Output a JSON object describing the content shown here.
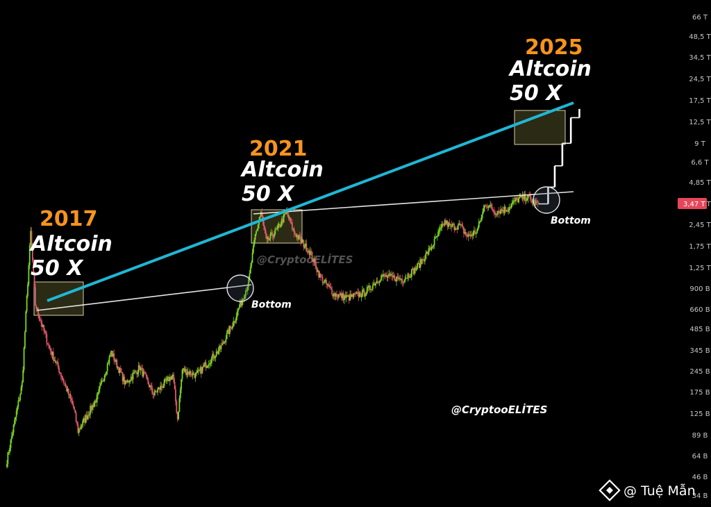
{
  "chart_data": {
    "type": "candlestick",
    "y_axis": {
      "scale": "log",
      "tick_labels": [
        "66 T",
        "48,5 T",
        "34,5 T",
        "24,5 T",
        "17,5 T",
        "12,5 T",
        "9 T",
        "6,6 T",
        "4,85 T",
        "3,47 T",
        "2,45 T",
        "1,75 T",
        "1,25 T",
        "900 B",
        "660 B",
        "485 B",
        "345 B",
        "245 B",
        "175 B",
        "125 B",
        "89 B",
        "64 B",
        "46 B",
        "34 B"
      ],
      "current_price_label": "3,47 T"
    },
    "cycles": [
      {
        "year": "2017",
        "line1": "Altcoin",
        "line2": "50 X"
      },
      {
        "year": "2021",
        "line1": "Altcoin",
        "line2": "50 X"
      },
      {
        "year": "2025",
        "line1": "Altcoin",
        "line2": "50 X"
      }
    ],
    "bottom_labels": [
      "Bottom",
      "Bottom"
    ],
    "watermarks": [
      "@CryptooELİTES",
      "@CryptooELİTES"
    ],
    "credit": "@ Tuệ Mẫn",
    "colors": {
      "up": "#7ad91f",
      "down": "#e0596a",
      "upper_trendline": "#1fb7d4",
      "lower_trendline": "#e6e6e6",
      "year": "#f7941d",
      "highlight_box": "#2b2a14"
    },
    "series_anchor_points": [
      [
        0,
        60
      ],
      [
        16,
        200
      ],
      [
        20,
        600
      ],
      [
        25,
        2200
      ],
      [
        30,
        700
      ],
      [
        45,
        350
      ],
      [
        55,
        250
      ],
      [
        70,
        140
      ],
      [
        75,
        95
      ],
      [
        95,
        160
      ],
      [
        110,
        330
      ],
      [
        125,
        200
      ],
      [
        140,
        260
      ],
      [
        155,
        170
      ],
      [
        175,
        230
      ],
      [
        180,
        115
      ],
      [
        185,
        250
      ],
      [
        200,
        230
      ],
      [
        225,
        350
      ],
      [
        240,
        550
      ],
      [
        255,
        1000
      ],
      [
        262,
        2100
      ],
      [
        268,
        3000
      ],
      [
        274,
        1900
      ],
      [
        285,
        2300
      ],
      [
        295,
        3000
      ],
      [
        303,
        2200
      ],
      [
        320,
        1600
      ],
      [
        330,
        1100
      ],
      [
        345,
        830
      ],
      [
        360,
        780
      ],
      [
        378,
        850
      ],
      [
        395,
        1100
      ],
      [
        418,
        1050
      ],
      [
        432,
        1250
      ],
      [
        447,
        1700
      ],
      [
        462,
        2600
      ],
      [
        468,
        2400
      ],
      [
        478,
        2450
      ],
      [
        486,
        2050
      ],
      [
        496,
        2250
      ],
      [
        505,
        3500
      ],
      [
        515,
        3050
      ],
      [
        528,
        3200
      ],
      [
        538,
        3700
      ],
      [
        549,
        3850
      ],
      [
        556,
        3550
      ],
      [
        561,
        3450
      ]
    ],
    "projection_points": [
      [
        561,
        3450
      ],
      [
        571,
        4500
      ],
      [
        578,
        6300
      ],
      [
        586,
        9000
      ],
      [
        595,
        13500
      ],
      [
        604,
        15500
      ]
    ]
  }
}
